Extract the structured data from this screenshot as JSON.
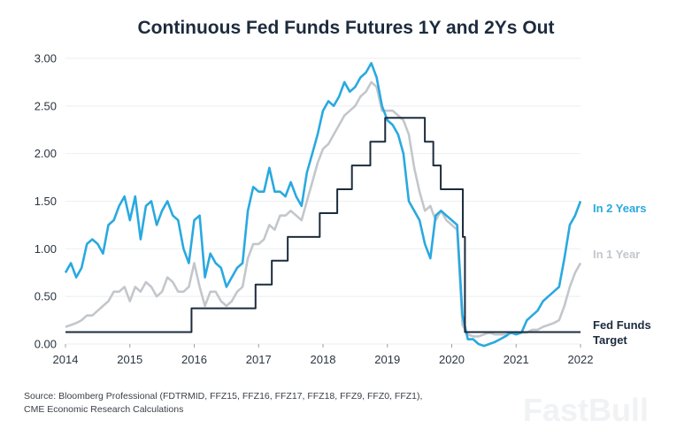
{
  "chart_data": {
    "type": "line",
    "title": "Continuous Fed Funds Futures 1Y and 2Ys Out",
    "xlabel": "",
    "ylabel": "",
    "xlim": [
      "2014-01",
      "2022-01"
    ],
    "ylim": [
      0,
      3
    ],
    "x_ticks": [
      "2014",
      "2015",
      "2016",
      "2017",
      "2018",
      "2019",
      "2020",
      "2021",
      "2022"
    ],
    "y_ticks": [
      "0.00",
      "0.50",
      "1.00",
      "1.50",
      "2.00",
      "2.50",
      "3.00"
    ],
    "grid": "horizontal",
    "legend": "direct labels at right end of lines",
    "series": [
      {
        "name": "In 2 Years",
        "color": "#29a9e0",
        "start": "2014-01",
        "frequency": "monthly",
        "values": [
          0.75,
          0.85,
          0.7,
          0.8,
          1.05,
          1.1,
          1.05,
          0.95,
          1.25,
          1.3,
          1.45,
          1.55,
          1.3,
          1.55,
          1.1,
          1.45,
          1.5,
          1.25,
          1.4,
          1.5,
          1.35,
          1.3,
          1.0,
          0.85,
          1.3,
          1.35,
          0.7,
          0.95,
          0.85,
          0.8,
          0.6,
          0.7,
          0.8,
          0.85,
          1.4,
          1.65,
          1.6,
          1.6,
          1.85,
          1.6,
          1.6,
          1.55,
          1.7,
          1.55,
          1.45,
          1.8,
          2.0,
          2.2,
          2.45,
          2.55,
          2.5,
          2.6,
          2.75,
          2.65,
          2.7,
          2.8,
          2.85,
          2.95,
          2.8,
          2.5,
          2.35,
          2.3,
          2.2,
          2.0,
          1.5,
          1.4,
          1.3,
          1.05,
          0.9,
          1.35,
          1.4,
          1.35,
          1.3,
          1.25,
          0.3,
          0.05,
          0.05,
          0.0,
          -0.02,
          0.0,
          0.02,
          0.05,
          0.08,
          0.12,
          0.1,
          0.12,
          0.25,
          0.3,
          0.35,
          0.45,
          0.5,
          0.55,
          0.6,
          0.9,
          1.25,
          1.35,
          1.5
        ]
      },
      {
        "name": "In 1 Year",
        "color": "#c3c7cb",
        "start": "2014-01",
        "frequency": "monthly",
        "values": [
          0.18,
          0.2,
          0.22,
          0.25,
          0.3,
          0.3,
          0.35,
          0.4,
          0.45,
          0.55,
          0.55,
          0.6,
          0.45,
          0.6,
          0.55,
          0.65,
          0.6,
          0.5,
          0.55,
          0.7,
          0.65,
          0.55,
          0.55,
          0.6,
          0.85,
          0.6,
          0.4,
          0.55,
          0.55,
          0.45,
          0.4,
          0.45,
          0.55,
          0.6,
          0.9,
          1.05,
          1.05,
          1.1,
          1.25,
          1.2,
          1.35,
          1.35,
          1.4,
          1.35,
          1.3,
          1.5,
          1.7,
          1.9,
          2.05,
          2.1,
          2.2,
          2.3,
          2.4,
          2.45,
          2.5,
          2.6,
          2.65,
          2.75,
          2.7,
          2.45,
          2.45,
          2.45,
          2.4,
          2.35,
          2.2,
          1.85,
          1.6,
          1.4,
          1.45,
          1.3,
          1.4,
          1.3,
          1.25,
          1.2,
          0.2,
          0.1,
          0.08,
          0.08,
          0.1,
          0.12,
          0.1,
          0.1,
          0.1,
          0.12,
          0.12,
          0.12,
          0.12,
          0.15,
          0.15,
          0.18,
          0.2,
          0.22,
          0.25,
          0.4,
          0.6,
          0.75,
          0.85
        ]
      },
      {
        "name": "Fed Funds Target",
        "color": "#1c2b3d",
        "type": "step",
        "points": [
          [
            "2014-01-01",
            0.125
          ],
          [
            "2015-12-16",
            0.375
          ],
          [
            "2016-12-14",
            0.625
          ],
          [
            "2017-03-15",
            0.875
          ],
          [
            "2017-06-14",
            1.125
          ],
          [
            "2017-12-13",
            1.375
          ],
          [
            "2018-03-21",
            1.625
          ],
          [
            "2018-06-13",
            1.875
          ],
          [
            "2018-09-26",
            2.125
          ],
          [
            "2018-12-19",
            2.375
          ],
          [
            "2019-07-31",
            2.125
          ],
          [
            "2019-09-18",
            1.875
          ],
          [
            "2019-10-30",
            1.625
          ],
          [
            "2020-03-03",
            1.125
          ],
          [
            "2020-03-15",
            0.125
          ],
          [
            "2022-01-01",
            0.125
          ]
        ]
      }
    ],
    "labels": {
      "in_2_years": "In 2 Years",
      "in_1_year": "In 1 Year",
      "fed_funds_line1": "Fed Funds",
      "fed_funds_line2": "Target"
    }
  },
  "source": {
    "line1": "Source: Bloomberg Professional (FDTRMID, FFZ15, FFZ16, FFZ17, FFZ18, FFZ9, FFZ0, FFZ1),",
    "line2": "CME Economic Research Calculations"
  },
  "watermark": "FastBull"
}
